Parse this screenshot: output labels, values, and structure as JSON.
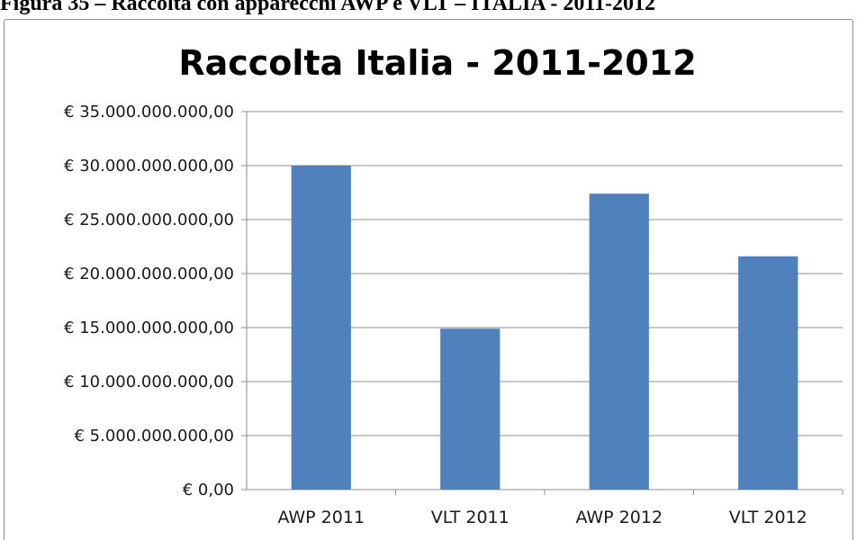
{
  "caption": "Figura 35 – Raccolta con apparecchi AWP e VLT – ITALIA - 2011-2012",
  "chart_data": {
    "type": "bar",
    "title": "Raccolta Italia - 2011-2012",
    "xlabel": "",
    "ylabel": "",
    "categories": [
      "AWP 2011",
      "VLT 2011",
      "AWP 2012",
      "VLT 2012"
    ],
    "values": [
      30000000000,
      14900000000,
      27400000000,
      21600000000
    ],
    "ylim": [
      0,
      35000000000
    ],
    "y_ticks": [
      0,
      5000000000,
      10000000000,
      15000000000,
      20000000000,
      25000000000,
      30000000000,
      35000000000
    ],
    "y_tick_labels": [
      "€ 0,00",
      "€ 5.000.000.000,00",
      "€ 10.000.000.000,00",
      "€ 15.000.000.000,00",
      "€ 20.000.000.000,00",
      "€ 25.000.000.000,00",
      "€ 30.000.000.000,00",
      "€ 35.000.000.000,00"
    ],
    "grid": true,
    "legend": "none",
    "bar_color": "#4f81bd",
    "grid_color": "#8c8c8c"
  }
}
